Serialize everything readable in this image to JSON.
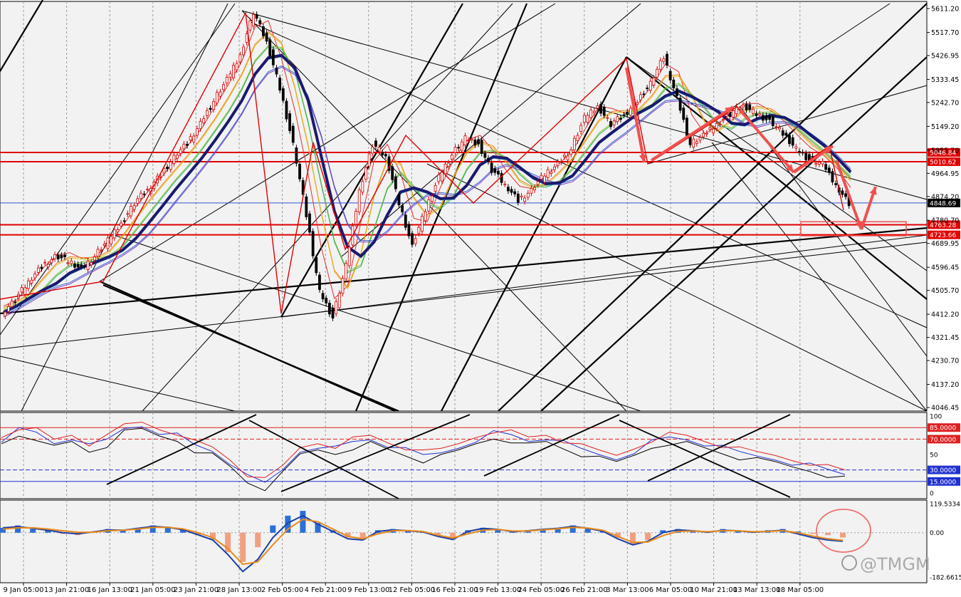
{
  "colors": {
    "background": "#f2f2f2",
    "grid": "#9a9a9a",
    "candle_up": "#d00000",
    "candle_down": "#000000",
    "level_line": "#e00000",
    "current_price_line": "#3355cc",
    "trend_line": "#000000",
    "ribbon_main": "#1a1a6e",
    "annotation_arrow": "#f05050",
    "hist_up": "#2c6fd6",
    "hist_down": "#f0a080",
    "macd_line": "#1b3fa8",
    "signal_line": "#e88a1a",
    "osc_blue": "#2030d0",
    "osc_red": "#e02020"
  },
  "chart_data": [
    {
      "type": "line",
      "panel": "price",
      "x_labels": [
        "9 Jan 05:00",
        "13 Jan 21:00",
        "16 Jan 13:00",
        "21 Jan 05:00",
        "23 Jan 21:00",
        "28 Jan 13:00",
        "2 Feb 05:00",
        "4 Feb 21:00",
        "9 Feb 13:00",
        "12 Feb 05:00",
        "16 Feb 21:00",
        "19 Feb 13:00",
        "24 Feb 05:00",
        "26 Feb 21:00",
        "3 Mar 13:00",
        "6 Mar 05:00",
        "10 Mar 21:00",
        "13 Mar 13:00",
        "18 Mar 05:00"
      ],
      "y_ticks": [
        "5611.20",
        "5517.70",
        "5426.95",
        "5333.45",
        "5242.70",
        "5149.20",
        "5055.70",
        "4964.95",
        "4874.20",
        "4780.70",
        "4689.95",
        "4596.45",
        "4505.70",
        "4412.20",
        "4321.45",
        "4230.70",
        "4137.20",
        "4046.45"
      ],
      "ylim": [
        4046.45,
        5611.2
      ],
      "price_path": [
        4420,
        4470,
        4540,
        4600,
        4640,
        4620,
        4590,
        4640,
        4700,
        4770,
        4850,
        4900,
        4960,
        5030,
        5080,
        5160,
        5250,
        5330,
        5430,
        5600,
        5480,
        5300,
        5080,
        4800,
        4500,
        4400,
        4600,
        4900,
        5080,
        5030,
        4850,
        4680,
        4820,
        4950,
        5040,
        5100,
        5080,
        4980,
        4920,
        4860,
        4900,
        4960,
        5000,
        5060,
        5180,
        5230,
        5160,
        5190,
        5250,
        5320,
        5420,
        5260,
        5080,
        5110,
        5160,
        5200,
        5230,
        5200,
        5170,
        5120,
        5060,
        5020,
        5000,
        4920,
        4850
      ],
      "price_levels": [
        {
          "label": "5046.84",
          "value": 5046.84
        },
        {
          "label": "5010.62",
          "value": 5010.62
        },
        {
          "label": "4763.28",
          "value": 4763.28
        },
        {
          "label": "4723.66",
          "value": 4723.66
        }
      ],
      "current_price": {
        "label": "4848.69",
        "value": 4848.69
      }
    },
    {
      "type": "line",
      "panel": "oscillator",
      "y_ticks": [
        "100",
        "85.0000",
        "70.0000",
        "50",
        "30.0000",
        "15.0000",
        "0"
      ],
      "ylim": [
        0,
        100
      ],
      "levels": [
        85,
        70,
        30,
        15
      ],
      "series": [
        {
          "values": [
            70,
            82,
            78,
            65,
            72,
            60,
            68,
            84,
            88,
            80,
            75,
            62,
            55,
            40,
            20,
            12,
            30,
            55,
            62,
            58,
            66,
            70,
            62,
            55,
            48,
            52,
            60,
            70,
            78,
            75,
            68,
            72,
            64,
            56,
            50,
            45,
            55,
            66,
            72,
            70,
            64,
            58,
            52,
            48,
            45,
            40,
            36,
            30,
            25
          ]
        }
      ]
    },
    {
      "type": "bar",
      "panel": "macd",
      "y_ticks": [
        "119.5334",
        "0.00",
        "-182.6615"
      ],
      "ylim": [
        -182.6615,
        119.5334
      ],
      "histogram": [
        20,
        30,
        15,
        10,
        -5,
        -10,
        5,
        15,
        10,
        20,
        30,
        25,
        15,
        -10,
        -30,
        -80,
        -120,
        -60,
        30,
        70,
        90,
        40,
        10,
        -20,
        -30,
        10,
        15,
        10,
        5,
        -15,
        -25,
        10,
        20,
        15,
        5,
        10,
        15,
        20,
        30,
        20,
        10,
        -20,
        -50,
        -30,
        10,
        15,
        10,
        5,
        15,
        10,
        5,
        10,
        15,
        5,
        -5,
        -10,
        -20
      ],
      "macd": [
        20,
        25,
        18,
        10,
        0,
        -5,
        3,
        12,
        10,
        18,
        26,
        22,
        12,
        -8,
        -30,
        -90,
        -160,
        -110,
        -20,
        40,
        70,
        35,
        5,
        -25,
        -30,
        5,
        12,
        8,
        3,
        -15,
        -28,
        5,
        18,
        14,
        4,
        8,
        14,
        18,
        26,
        18,
        6,
        -25,
        -50,
        -35,
        0,
        12,
        8,
        2,
        10,
        8,
        2,
        6,
        10,
        -5,
        -20,
        -30,
        -35
      ],
      "signal": [
        15,
        20,
        20,
        15,
        8,
        2,
        2,
        8,
        10,
        15,
        22,
        22,
        16,
        0,
        -20,
        -65,
        -130,
        -120,
        -50,
        15,
        55,
        45,
        15,
        -15,
        -25,
        -5,
        8,
        9,
        5,
        -10,
        -22,
        -5,
        10,
        13,
        7,
        7,
        12,
        16,
        22,
        19,
        10,
        -15,
        -40,
        -38,
        -12,
        5,
        7,
        4,
        8,
        8,
        4,
        5,
        8,
        0,
        -14,
        -25,
        -32
      ]
    }
  ],
  "watermark": {
    "text": "@TMGM",
    "logo": "tmgm-logo"
  }
}
